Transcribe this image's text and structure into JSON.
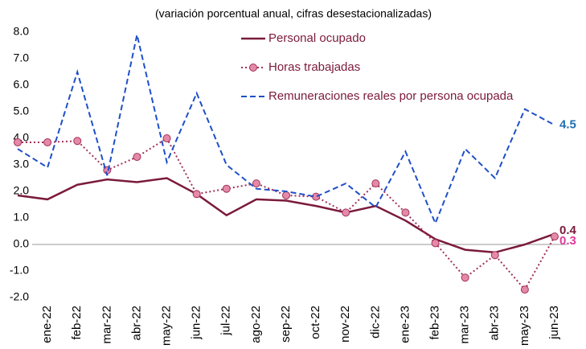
{
  "chart_data": {
    "type": "line",
    "subtitle": "(variación porcentual anual, cifras desestacionalizadas)",
    "categories": [
      null,
      "ene-22",
      "feb-22",
      "mar-22",
      "abr-22",
      "may-22",
      "jun-22",
      "jul-22",
      "ago-22",
      "sep-22",
      "oct-22",
      "nov-22",
      "dic-22",
      "ene-23",
      "feb-23",
      "mar-23",
      "abr-23",
      "may-23",
      "jun-23"
    ],
    "ylim": [
      -2,
      8
    ],
    "yticks": [
      {
        "value": 8,
        "label": "8.0"
      },
      {
        "value": 7,
        "label": "7.0"
      },
      {
        "value": 6,
        "label": "6.0"
      },
      {
        "value": 5,
        "label": "5.0"
      },
      {
        "value": 4,
        "label": "4.0"
      },
      {
        "value": 3,
        "label": "3.0"
      },
      {
        "value": 2,
        "label": "2.0"
      },
      {
        "value": 1,
        "label": "1.0"
      },
      {
        "value": 0,
        "label": "0.0"
      },
      {
        "value": -1,
        "label": "-1.0"
      },
      {
        "value": -2,
        "label": "-2.0"
      }
    ],
    "grid": false,
    "series": [
      {
        "name": "Personal ocupado",
        "color": "#7b1a3c",
        "style": "solid",
        "markers": false,
        "label_color": "#7b1a3c",
        "values": [
          1.85,
          1.7,
          2.25,
          2.45,
          2.35,
          2.5,
          1.9,
          1.1,
          1.7,
          1.65,
          1.45,
          1.2,
          1.45,
          0.9,
          0.2,
          -0.2,
          -0.3,
          0.0,
          0.4
        ],
        "value_labels": [
          null,
          null,
          null,
          null,
          null,
          null,
          null,
          null,
          null,
          null,
          null,
          null,
          null,
          null,
          null,
          null,
          null,
          null,
          "0.4"
        ]
      },
      {
        "name": "Horas trabajadas",
        "color": "#a0305c",
        "style": "dotted",
        "markers": true,
        "marker_color": "#e58aa6",
        "label_color": "#e0389a",
        "values": [
          3.85,
          3.85,
          3.9,
          2.8,
          3.3,
          4.0,
          1.9,
          2.1,
          2.3,
          1.85,
          1.8,
          1.2,
          2.3,
          1.2,
          0.05,
          -1.25,
          -0.4,
          -1.7,
          0.3
        ],
        "value_labels": [
          null,
          null,
          null,
          null,
          null,
          null,
          null,
          null,
          null,
          null,
          null,
          null,
          null,
          null,
          null,
          null,
          null,
          null,
          "0.3"
        ]
      },
      {
        "name": "Remuneraciones reales por persona ocupada",
        "color": "#1f4fc8",
        "style": "dashed",
        "markers": false,
        "label_color": "#1f6fb0",
        "values": [
          3.6,
          2.9,
          6.5,
          2.6,
          7.9,
          3.1,
          5.7,
          3.0,
          2.1,
          2.0,
          1.8,
          2.3,
          1.4,
          3.5,
          0.8,
          3.6,
          2.5,
          5.1,
          4.5
        ],
        "value_labels": [
          null,
          null,
          null,
          null,
          null,
          null,
          null,
          null,
          null,
          null,
          null,
          null,
          null,
          null,
          null,
          null,
          null,
          null,
          "4.5"
        ]
      }
    ]
  }
}
